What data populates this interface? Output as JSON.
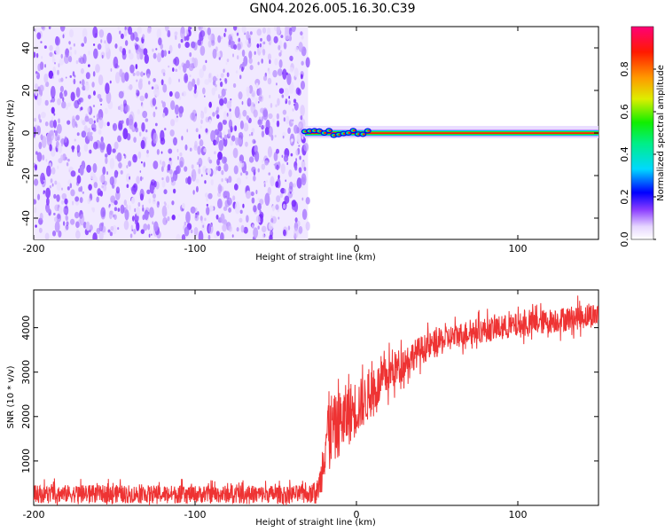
{
  "title": "GN04.2026.005.16.30.C39",
  "chart_data": [
    {
      "type": "heatmap",
      "xlabel": "Height of straight line (km)",
      "ylabel": "Frequency (Hz)",
      "xlim": [
        -200,
        150
      ],
      "ylim": [
        -50,
        50
      ],
      "x_ticks": [
        -200,
        -100,
        0,
        100
      ],
      "y_ticks": [
        -40,
        -20,
        0,
        20,
        40
      ],
      "noise_region_x": [
        -200,
        -30
      ],
      "signal_line_frequency_hz": 0,
      "signal_start_x": -32,
      "colorbar": {
        "label": "Normalized spectral amplitude",
        "range": [
          0.0,
          1.0
        ],
        "ticks": [
          0.0,
          0.2,
          0.4,
          0.6,
          0.8
        ]
      },
      "grid": false
    },
    {
      "type": "line",
      "xlabel": "Height of straight line (km)",
      "ylabel": "SNR (10 * v/v)",
      "xlim": [
        -200,
        150
      ],
      "ylim": [
        0,
        4850
      ],
      "x_ticks": [
        -200,
        -100,
        0,
        100
      ],
      "y_ticks": [
        1000,
        2000,
        3000,
        4000
      ],
      "color": "#ee3333",
      "grid": false,
      "series": [
        {
          "x": [
            -200,
            -150,
            -100,
            -60,
            -25,
            -22,
            -20,
            -18,
            -15,
            -12,
            -10,
            -5,
            0,
            5,
            10,
            15,
            20,
            30,
            40,
            50,
            60,
            70,
            80,
            90,
            100,
            120,
            150
          ],
          "y": [
            260,
            260,
            250,
            250,
            260,
            600,
            1300,
            1700,
            1750,
            1700,
            1900,
            2050,
            2200,
            2350,
            2550,
            2750,
            2950,
            3250,
            3500,
            3650,
            3800,
            3900,
            3950,
            4000,
            4050,
            4150,
            4300
          ],
          "noise_amplitude": [
            250,
            250,
            250,
            250,
            250,
            500,
            900,
            1100,
            1000,
            900,
            900,
            900,
            800,
            700,
            650,
            600,
            550,
            450,
            400,
            400,
            350,
            350,
            350,
            350,
            350,
            350,
            350
          ]
        }
      ]
    }
  ]
}
